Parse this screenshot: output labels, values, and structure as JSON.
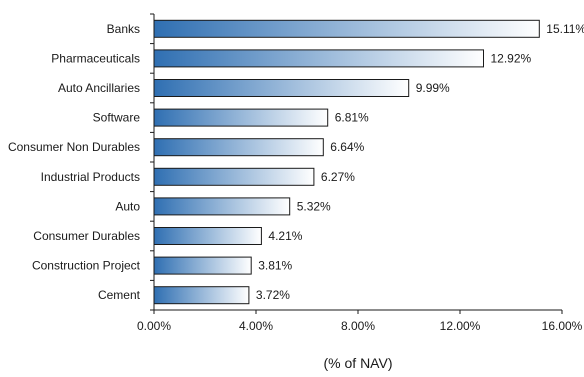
{
  "chart_data": {
    "type": "bar",
    "orientation": "horizontal",
    "categories": [
      "Banks",
      "Pharmaceuticals",
      "Auto Ancillaries",
      "Software",
      "Consumer Non Durables",
      "Industrial Products",
      "Auto",
      "Consumer Durables",
      "Construction Project",
      "Cement"
    ],
    "values": [
      15.11,
      12.92,
      9.99,
      6.81,
      6.64,
      6.27,
      5.32,
      4.21,
      3.81,
      3.72
    ],
    "value_labels": [
      "15.11%",
      "12.92%",
      "9.99%",
      "6.81%",
      "6.64%",
      "6.27%",
      "5.32%",
      "4.21%",
      "3.81%",
      "3.72%"
    ],
    "xlim": [
      0,
      16
    ],
    "x_ticks": [
      0,
      4,
      8,
      12,
      16
    ],
    "x_tick_labels": [
      "0.00%",
      "4.00%",
      "8.00%",
      "12.00%",
      "16.00%"
    ],
    "xlabel": "(% of NAV)",
    "ylabel": "",
    "title": "",
    "grid": false,
    "legend": "none",
    "bar_gradient": [
      "#2f6fb2",
      "#ffffff"
    ],
    "bar_stroke": "#1a1a1a"
  }
}
